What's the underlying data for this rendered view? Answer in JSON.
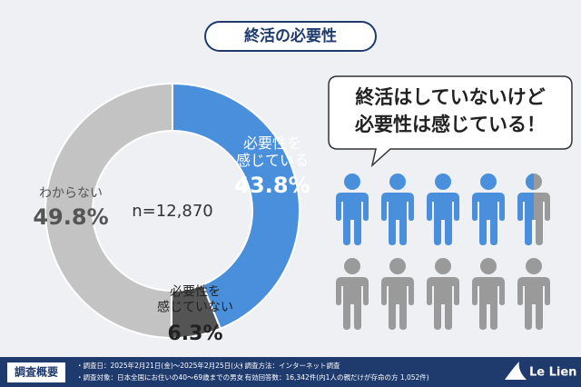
{
  "chart_data": {
    "type": "donut",
    "title": "終活の必要性",
    "categories": [
      [
        "必要性を",
        "感じている"
      ],
      [
        "必要性を",
        "感じていない"
      ],
      [
        "わからない"
      ]
    ],
    "values": [
      43.8,
      6.3,
      49.8
    ],
    "value_labels": [
      "43.8%",
      "6.3%",
      "49.8%"
    ],
    "colors": [
      "#4a8fdc",
      "#545454",
      "#c3c3c3"
    ],
    "center_label": "n=12,870"
  },
  "callout": {
    "lines": [
      "終活はしていないけど",
      "必要性は感じている！"
    ]
  },
  "footer": {
    "heading": "調査概要",
    "items": [
      "・調査日：2025年2月21日(金)～2025年2月25日(火)",
      "・調査方法：インターネット調査",
      "・調査対象：日本全国にお住いの40～69歳までの男女",
      "・有効回答数：16,342件(内1人の親だけが存命の方 1,052件)"
    ],
    "logo": "Le Lien"
  }
}
